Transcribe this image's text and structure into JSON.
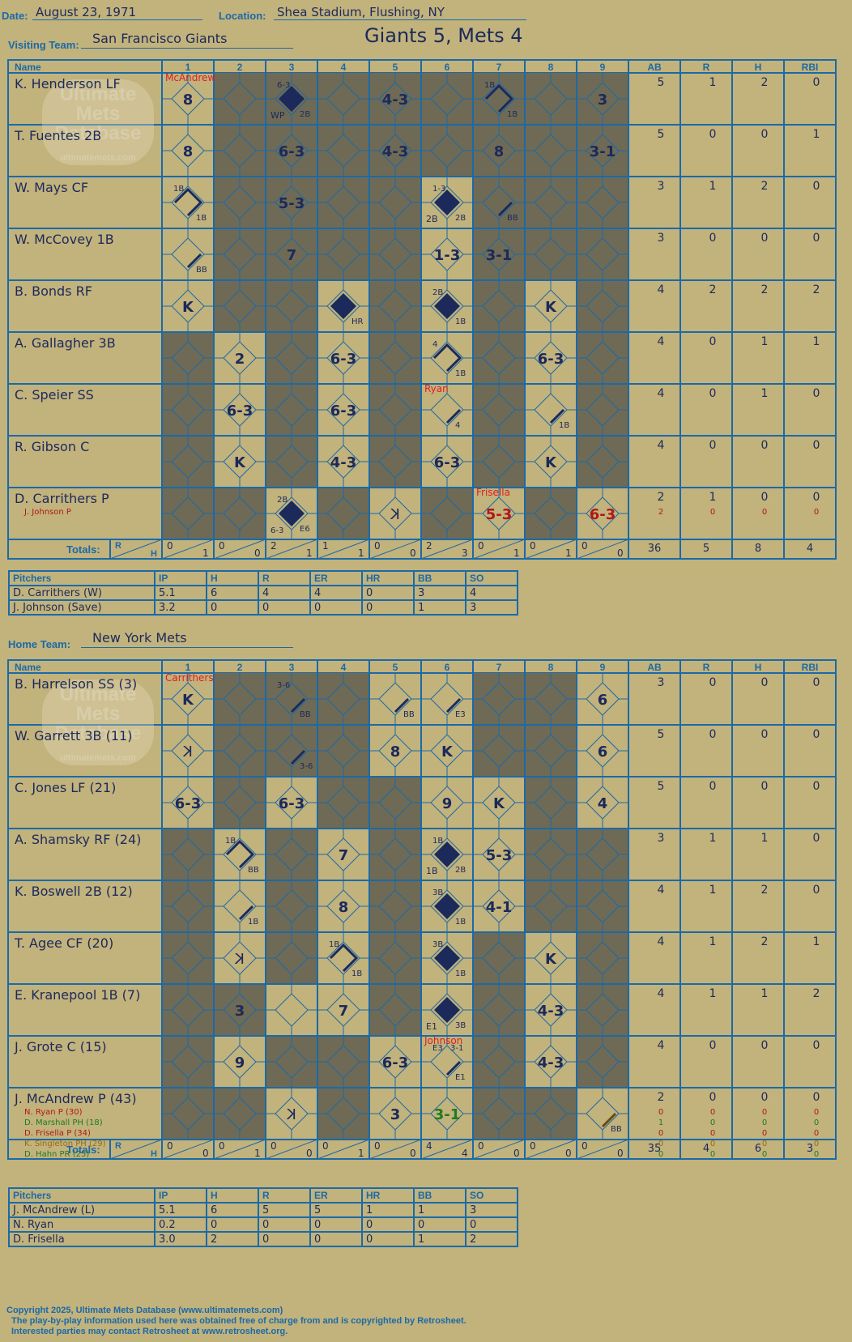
{
  "header": {
    "date_label": "Date:",
    "date": "August 23, 1971",
    "location_label": "Location:",
    "location": "Shea Stadium, Flushing, NY",
    "visiting_label": "Visiting Team:",
    "visiting_team": "San Francisco Giants",
    "home_label": "Home Team:",
    "home_team": "New York Mets",
    "final": "Giants 5, Mets 4"
  },
  "watermark": [
    "Ultimate",
    "Mets",
    "Database",
    "ultimatemets.com"
  ],
  "columns": {
    "name": "Name",
    "innings": [
      "1",
      "2",
      "3",
      "4",
      "5",
      "6",
      "7",
      "8",
      "9"
    ],
    "stats": [
      "AB",
      "R",
      "H",
      "RBI"
    ],
    "totals": "Totals:",
    "r": "R",
    "h": "H"
  },
  "pitch_cols": [
    "Pitchers",
    "IP",
    "H",
    "R",
    "ER",
    "HR",
    "BB",
    "SO"
  ],
  "visitors": {
    "players": [
      {
        "name": "K. Henderson LF",
        "stats": [
          "5",
          "1",
          "2",
          "0"
        ]
      },
      {
        "name": "T. Fuentes 2B",
        "stats": [
          "5",
          "0",
          "0",
          "1"
        ]
      },
      {
        "name": "W. Mays CF",
        "stats": [
          "3",
          "1",
          "2",
          "0"
        ]
      },
      {
        "name": "W. McCovey 1B",
        "stats": [
          "3",
          "0",
          "0",
          "0"
        ]
      },
      {
        "name": "B. Bonds RF",
        "stats": [
          "4",
          "2",
          "2",
          "2"
        ]
      },
      {
        "name": "A. Gallagher 3B",
        "stats": [
          "4",
          "0",
          "1",
          "1"
        ]
      },
      {
        "name": "C. Speier SS",
        "stats": [
          "4",
          "0",
          "1",
          "0"
        ]
      },
      {
        "name": "R. Gibson C",
        "stats": [
          "4",
          "0",
          "0",
          "0"
        ]
      },
      {
        "name": "D. Carrithers P",
        "stats": [
          "2",
          "1",
          "0",
          "0"
        ],
        "subs": [
          {
            "name": "J. Johnson P",
            "stats": [
              "2",
              "0",
              "0",
              "0"
            ],
            "color": "#b01818"
          }
        ]
      }
    ],
    "shaded": [
      [
        2,
        3,
        4,
        5,
        6,
        7,
        8,
        9
      ],
      [
        2,
        3,
        4,
        5,
        6,
        7,
        8,
        9
      ],
      [
        2,
        3,
        4,
        5,
        7,
        8,
        9
      ],
      [
        2,
        3,
        4,
        5,
        7,
        8,
        9
      ],
      [
        2,
        3,
        5,
        7,
        9
      ],
      [
        1,
        3,
        5,
        7,
        9
      ],
      [
        1,
        3,
        5,
        7,
        9
      ],
      [
        1,
        3,
        5,
        7,
        9
      ],
      [
        1,
        2,
        4,
        6,
        8
      ]
    ],
    "cells": [
      [
        [
          1,
          "8"
        ],
        [
          3,
          "6-3 2B|WP|scored"
        ],
        [
          5,
          "4-3"
        ],
        [
          7,
          "1B 1B|edge"
        ],
        [
          9,
          "3"
        ]
      ],
      [
        [
          1,
          "8"
        ],
        [
          3,
          "6-3"
        ],
        [
          5,
          "4-3"
        ],
        [
          7,
          "8"
        ],
        [
          9,
          "3-1"
        ]
      ],
      [
        [
          1,
          "1B 1B|edge2"
        ],
        [
          3,
          "5-3"
        ],
        [
          6,
          "1-3 2B|2B|scored"
        ],
        [
          7,
          "BB|edge1"
        ]
      ],
      [
        [
          1,
          "BB|edge1"
        ],
        [
          3,
          "7"
        ],
        [
          6,
          "1-3"
        ],
        [
          7,
          "3-1"
        ]
      ],
      [
        [
          1,
          "K"
        ],
        [
          4,
          "HR|scored"
        ],
        [
          6,
          "2B 1B|scored"
        ],
        [
          8,
          "K"
        ]
      ],
      [
        [
          2,
          "2"
        ],
        [
          4,
          "6-3"
        ],
        [
          6,
          "4 1B|edge"
        ],
        [
          8,
          "6-3"
        ]
      ],
      [
        [
          2,
          "6-3"
        ],
        [
          4,
          "6-3"
        ],
        [
          6,
          "4|edge1"
        ],
        [
          8,
          "1B|edge1"
        ]
      ],
      [
        [
          2,
          "K"
        ],
        [
          4,
          "4-3"
        ],
        [
          6,
          "6-3"
        ],
        [
          8,
          "K"
        ]
      ],
      [
        [
          3,
          "2B 6-3 E6|scored"
        ],
        [
          5,
          "backK"
        ],
        [
          7,
          "5-3|red"
        ],
        [
          9,
          "6-3|red"
        ]
      ]
    ],
    "notes": [
      {
        "inning": 1,
        "row": 0,
        "text": "McAndrew"
      },
      {
        "inning": 6,
        "row": 6,
        "text": "Ryan"
      },
      {
        "inning": 7,
        "row": 8,
        "text": "Frisella"
      }
    ],
    "totals": [
      [
        "0",
        "1"
      ],
      [
        "0",
        "0"
      ],
      [
        "2",
        "1"
      ],
      [
        "1",
        "1"
      ],
      [
        "0",
        "0"
      ],
      [
        "2",
        "3"
      ],
      [
        "0",
        "1"
      ],
      [
        "0",
        "1"
      ],
      [
        "0",
        "0"
      ]
    ],
    "total_stats": [
      "36",
      "5",
      "8",
      "4"
    ],
    "pitchers": [
      [
        "D. Carrithers (W)",
        "5.1",
        "6",
        "4",
        "4",
        "0",
        "3",
        "4"
      ],
      [
        "J. Johnson (Save)",
        "3.2",
        "0",
        "0",
        "0",
        "0",
        "1",
        "3"
      ]
    ]
  },
  "home": {
    "players": [
      {
        "name": "B. Harrelson SS (3)",
        "stats": [
          "3",
          "0",
          "0",
          "0"
        ]
      },
      {
        "name": "W. Garrett 3B (11)",
        "stats": [
          "5",
          "0",
          "0",
          "0"
        ]
      },
      {
        "name": "C. Jones LF (21)",
        "stats": [
          "5",
          "0",
          "0",
          "0"
        ]
      },
      {
        "name": "A. Shamsky RF (24)",
        "stats": [
          "3",
          "1",
          "1",
          "0"
        ]
      },
      {
        "name": "K. Boswell 2B (12)",
        "stats": [
          "4",
          "1",
          "2",
          "0"
        ]
      },
      {
        "name": "T. Agee CF (20)",
        "stats": [
          "4",
          "1",
          "2",
          "1"
        ]
      },
      {
        "name": "E. Kranepool 1B (7)",
        "stats": [
          "4",
          "1",
          "1",
          "2"
        ]
      },
      {
        "name": "J. Grote C (15)",
        "stats": [
          "4",
          "0",
          "0",
          "0"
        ]
      },
      {
        "name": "J. McAndrew P (43)",
        "stats": [
          "2",
          "0",
          "0",
          "0"
        ],
        "subs": [
          {
            "name": "N. Ryan P (30)",
            "stats": [
              "0",
              "0",
              "0",
              "0"
            ],
            "color": "#b01818"
          },
          {
            "name": "D. Marshall PH (18)",
            "stats": [
              "1",
              "0",
              "0",
              "0"
            ],
            "color": "#207a20"
          },
          {
            "name": "D. Frisella P (34)",
            "stats": [
              "0",
              "0",
              "0",
              "0"
            ],
            "color": "#b01818"
          },
          {
            "name": "K. Singleton PH (29)",
            "stats": [
              "0",
              "0",
              "0",
              "0"
            ],
            "color": "#9a6a10"
          },
          {
            "name": "D. Hahn PR (25)",
            "stats": [
              "0",
              "0",
              "0",
              "0"
            ],
            "color": "#207a20"
          }
        ]
      }
    ],
    "shaded": [
      [
        2,
        3,
        4,
        7,
        8
      ],
      [
        2,
        3,
        4,
        7,
        8
      ],
      [
        2,
        4,
        5,
        8
      ],
      [
        1,
        3,
        5,
        8,
        9
      ],
      [
        1,
        3,
        5,
        8,
        9
      ],
      [
        1,
        3,
        5,
        7,
        9
      ],
      [
        1,
        2,
        5,
        7,
        9
      ],
      [
        1,
        3,
        4,
        7,
        9
      ],
      [
        1,
        2,
        4,
        7,
        8
      ]
    ],
    "cells": [
      [
        [
          1,
          "K"
        ],
        [
          3,
          "3-6 BB|edge1"
        ],
        [
          5,
          "BB|edge1"
        ],
        [
          6,
          "E3|edge1"
        ],
        [
          9,
          "6"
        ]
      ],
      [
        [
          1,
          "backK"
        ],
        [
          3,
          "3-6|edge1"
        ],
        [
          5,
          "8"
        ],
        [
          6,
          "K"
        ],
        [
          9,
          "6"
        ]
      ],
      [
        [
          1,
          "6-3"
        ],
        [
          3,
          "6-3"
        ],
        [
          6,
          "9"
        ],
        [
          7,
          "K"
        ],
        [
          9,
          "4"
        ]
      ],
      [
        [
          2,
          "1B BB|edge"
        ],
        [
          4,
          "7"
        ],
        [
          6,
          "1B 2B|1B|scored"
        ],
        [
          7,
          "5-3"
        ]
      ],
      [
        [
          2,
          "1B|edge1"
        ],
        [
          4,
          "8"
        ],
        [
          6,
          "3B 1B|scored"
        ],
        [
          7,
          "4-1"
        ]
      ],
      [
        [
          2,
          "backK"
        ],
        [
          4,
          "1B 1B|edge2"
        ],
        [
          6,
          "3B 1B|scored"
        ],
        [
          8,
          "K"
        ]
      ],
      [
        [
          2,
          "3"
        ],
        [
          4,
          "7"
        ],
        [
          6,
          "3B|E1|scored"
        ],
        [
          8,
          "4-3"
        ]
      ],
      [
        [
          2,
          "9"
        ],
        [
          5,
          "6-3"
        ],
        [
          6,
          "E3 3-1 E1|edge3"
        ],
        [
          8,
          "4-3"
        ]
      ],
      [
        [
          3,
          "backK"
        ],
        [
          5,
          "3"
        ],
        [
          6,
          "3-1|green"
        ],
        [
          9,
          "BB|edge1b"
        ]
      ]
    ],
    "notes": [
      {
        "inning": 1,
        "row": 0,
        "text": "Carrithers"
      },
      {
        "inning": 6,
        "row": 7,
        "text": "Johnson"
      }
    ],
    "totals": [
      [
        "0",
        "0"
      ],
      [
        "0",
        "1"
      ],
      [
        "0",
        "0"
      ],
      [
        "0",
        "1"
      ],
      [
        "0",
        "0"
      ],
      [
        "4",
        "4"
      ],
      [
        "0",
        "0"
      ],
      [
        "0",
        "0"
      ],
      [
        "0",
        "0"
      ]
    ],
    "total_stats": [
      "35",
      "4",
      "6",
      "3"
    ],
    "pitchers": [
      [
        "J. McAndrew (L)",
        "5.1",
        "6",
        "5",
        "5",
        "1",
        "1",
        "3"
      ],
      [
        "N. Ryan",
        "0.2",
        "0",
        "0",
        "0",
        "0",
        "0",
        "0"
      ],
      [
        "D. Frisella",
        "3.0",
        "2",
        "0",
        "0",
        "0",
        "1",
        "2"
      ]
    ]
  },
  "copyright": [
    "Copyright 2025, Ultimate Mets Database (www.ultimatemets.com)",
    "The play-by-play information used here was obtained free of charge from and is copyrighted by Retrosheet.",
    "Interested parties may contact Retrosheet at www.retrosheet.org."
  ]
}
